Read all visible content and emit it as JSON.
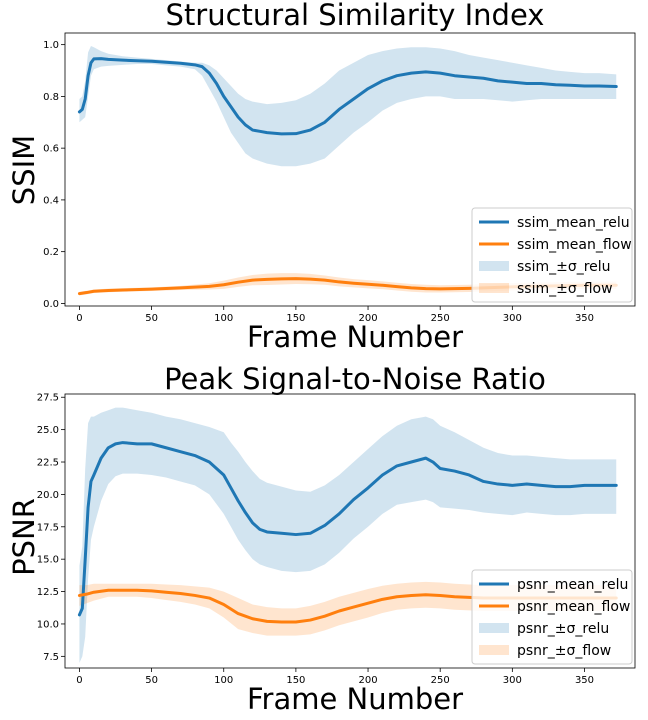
{
  "chart_data": [
    {
      "type": "line",
      "title": "Structural Similarity Index",
      "xlabel": "Frame Number",
      "ylabel": "SSIM",
      "xlim": [
        -10,
        385
      ],
      "ylim": [
        -0.01,
        1.045
      ],
      "xticks": [
        0,
        50,
        100,
        150,
        200,
        250,
        300,
        350
      ],
      "yticks": [
        0.0,
        0.2,
        0.4,
        0.6,
        0.8,
        1.0
      ],
      "ytick_labels": [
        "0.0",
        "0.2",
        "0.4",
        "0.6",
        "0.8",
        "1.0"
      ],
      "legend_position": "lower right",
      "series": [
        {
          "name": "ssim_mean_relu",
          "color": "#1f77b4",
          "x": [
            0,
            2,
            4,
            6,
            8,
            10,
            15,
            20,
            30,
            40,
            50,
            60,
            70,
            80,
            85,
            90,
            95,
            100,
            105,
            110,
            115,
            120,
            125,
            130,
            140,
            150,
            160,
            170,
            180,
            190,
            200,
            210,
            220,
            230,
            240,
            250,
            260,
            270,
            280,
            290,
            300,
            310,
            320,
            330,
            340,
            350,
            360,
            372
          ],
          "y": [
            0.74,
            0.75,
            0.79,
            0.88,
            0.93,
            0.945,
            0.946,
            0.943,
            0.94,
            0.938,
            0.936,
            0.932,
            0.928,
            0.922,
            0.915,
            0.89,
            0.85,
            0.8,
            0.76,
            0.72,
            0.69,
            0.67,
            0.665,
            0.66,
            0.655,
            0.656,
            0.67,
            0.7,
            0.75,
            0.79,
            0.83,
            0.86,
            0.88,
            0.89,
            0.895,
            0.89,
            0.88,
            0.875,
            0.87,
            0.86,
            0.855,
            0.85,
            0.85,
            0.845,
            0.843,
            0.84,
            0.84,
            0.838
          ]
        },
        {
          "name": "ssim_mean_flow",
          "color": "#ff7f0e",
          "x": [
            0,
            5,
            10,
            20,
            30,
            50,
            70,
            90,
            100,
            110,
            120,
            130,
            140,
            150,
            160,
            170,
            180,
            190,
            200,
            210,
            220,
            230,
            240,
            250,
            260,
            270,
            280,
            290,
            300,
            310,
            320,
            330,
            340,
            350,
            360,
            372
          ],
          "y": [
            0.038,
            0.042,
            0.047,
            0.05,
            0.052,
            0.055,
            0.06,
            0.066,
            0.072,
            0.082,
            0.09,
            0.093,
            0.095,
            0.096,
            0.094,
            0.09,
            0.083,
            0.078,
            0.074,
            0.07,
            0.065,
            0.06,
            0.057,
            0.056,
            0.057,
            0.058,
            0.06,
            0.062,
            0.064,
            0.066,
            0.067,
            0.068,
            0.069,
            0.07,
            0.07,
            0.07
          ]
        }
      ],
      "bands": [
        {
          "name": "ssim_±σ_relu",
          "color": "#1f77b4",
          "opacity": 0.2,
          "x": [
            0,
            2,
            4,
            6,
            8,
            10,
            15,
            20,
            30,
            40,
            50,
            60,
            70,
            80,
            85,
            90,
            95,
            100,
            105,
            110,
            115,
            120,
            125,
            130,
            140,
            150,
            160,
            170,
            180,
            190,
            200,
            210,
            220,
            230,
            240,
            250,
            260,
            270,
            280,
            290,
            300,
            310,
            320,
            330,
            340,
            350,
            360,
            372
          ],
          "upper": [
            0.79,
            0.8,
            0.86,
            0.97,
            0.995,
            0.99,
            0.975,
            0.965,
            0.955,
            0.95,
            0.945,
            0.94,
            0.935,
            0.93,
            0.93,
            0.92,
            0.9,
            0.87,
            0.84,
            0.81,
            0.79,
            0.78,
            0.775,
            0.77,
            0.775,
            0.785,
            0.81,
            0.85,
            0.9,
            0.93,
            0.96,
            0.975,
            0.985,
            0.99,
            0.99,
            0.985,
            0.975,
            0.96,
            0.95,
            0.94,
            0.93,
            0.92,
            0.91,
            0.9,
            0.895,
            0.89,
            0.89,
            0.885
          ],
          "lower": [
            0.7,
            0.71,
            0.72,
            0.8,
            0.88,
            0.905,
            0.915,
            0.918,
            0.922,
            0.925,
            0.925,
            0.92,
            0.915,
            0.905,
            0.88,
            0.83,
            0.78,
            0.72,
            0.66,
            0.62,
            0.58,
            0.56,
            0.55,
            0.54,
            0.53,
            0.53,
            0.54,
            0.56,
            0.61,
            0.66,
            0.7,
            0.745,
            0.775,
            0.79,
            0.8,
            0.8,
            0.79,
            0.79,
            0.79,
            0.785,
            0.78,
            0.785,
            0.79,
            0.79,
            0.79,
            0.79,
            0.79,
            0.79
          ]
        },
        {
          "name": "ssim_±σ_flow",
          "color": "#ff7f0e",
          "opacity": 0.2,
          "x": [
            0,
            5,
            10,
            20,
            30,
            50,
            70,
            90,
            100,
            110,
            120,
            130,
            140,
            150,
            160,
            170,
            180,
            190,
            200,
            210,
            220,
            230,
            240,
            250,
            260,
            270,
            280,
            290,
            300,
            310,
            320,
            330,
            340,
            350,
            360,
            372
          ],
          "upper": [
            0.045,
            0.049,
            0.054,
            0.057,
            0.059,
            0.062,
            0.068,
            0.078,
            0.088,
            0.1,
            0.11,
            0.115,
            0.117,
            0.117,
            0.114,
            0.108,
            0.1,
            0.094,
            0.09,
            0.085,
            0.08,
            0.075,
            0.072,
            0.07,
            0.071,
            0.072,
            0.074,
            0.076,
            0.078,
            0.08,
            0.081,
            0.082,
            0.083,
            0.084,
            0.084,
            0.084
          ],
          "lower": [
            0.031,
            0.035,
            0.04,
            0.043,
            0.045,
            0.048,
            0.052,
            0.054,
            0.056,
            0.064,
            0.07,
            0.071,
            0.073,
            0.075,
            0.074,
            0.072,
            0.066,
            0.062,
            0.058,
            0.055,
            0.05,
            0.045,
            0.042,
            0.042,
            0.043,
            0.044,
            0.046,
            0.048,
            0.05,
            0.052,
            0.053,
            0.054,
            0.055,
            0.056,
            0.056,
            0.056
          ]
        }
      ]
    },
    {
      "type": "line",
      "title": "Peak Signal-to-Noise Ratio",
      "xlabel": "Frame Number",
      "ylabel": "PSNR",
      "xlim": [
        -10,
        385
      ],
      "ylim": [
        6.6,
        27.75
      ],
      "xticks": [
        0,
        50,
        100,
        150,
        200,
        250,
        300,
        350
      ],
      "yticks": [
        7.5,
        10.0,
        12.5,
        15.0,
        17.5,
        20.0,
        22.5,
        25.0,
        27.5
      ],
      "ytick_labels": [
        "7.5",
        "10.0",
        "12.5",
        "15.0",
        "17.5",
        "20.0",
        "22.5",
        "25.0",
        "27.5"
      ],
      "legend_position": "lower right",
      "series": [
        {
          "name": "psnr_mean_relu",
          "color": "#1f77b4",
          "x": [
            0,
            2,
            4,
            6,
            8,
            10,
            15,
            20,
            25,
            30,
            40,
            50,
            60,
            70,
            80,
            90,
            100,
            105,
            110,
            115,
            120,
            125,
            130,
            140,
            150,
            160,
            170,
            180,
            190,
            200,
            210,
            220,
            230,
            240,
            245,
            250,
            260,
            270,
            280,
            290,
            300,
            310,
            320,
            330,
            340,
            350,
            360,
            372
          ],
          "y": [
            10.7,
            11.2,
            15.0,
            19.0,
            21.0,
            21.5,
            22.8,
            23.6,
            23.9,
            24.0,
            23.9,
            23.9,
            23.6,
            23.3,
            23.0,
            22.5,
            21.5,
            20.5,
            19.5,
            18.6,
            17.8,
            17.3,
            17.1,
            17.0,
            16.9,
            17.0,
            17.6,
            18.5,
            19.6,
            20.5,
            21.5,
            22.2,
            22.5,
            22.8,
            22.5,
            22.0,
            21.8,
            21.5,
            21.0,
            20.8,
            20.7,
            20.8,
            20.7,
            20.6,
            20.6,
            20.7,
            20.7,
            20.7
          ]
        },
        {
          "name": "psnr_mean_flow",
          "color": "#ff7f0e",
          "x": [
            0,
            5,
            10,
            20,
            30,
            40,
            50,
            60,
            70,
            80,
            90,
            100,
            110,
            120,
            130,
            140,
            150,
            160,
            170,
            180,
            190,
            200,
            210,
            220,
            230,
            240,
            250,
            260,
            270,
            280,
            290,
            300,
            310,
            320,
            330,
            340,
            350,
            360,
            372
          ],
          "y": [
            12.2,
            12.3,
            12.45,
            12.6,
            12.6,
            12.6,
            12.55,
            12.45,
            12.35,
            12.2,
            12.0,
            11.5,
            10.8,
            10.4,
            10.2,
            10.15,
            10.15,
            10.3,
            10.6,
            11.0,
            11.3,
            11.6,
            11.9,
            12.1,
            12.2,
            12.25,
            12.2,
            12.1,
            12.05,
            12.0,
            12.0,
            12.0,
            12.0,
            12.0,
            12.0,
            12.0,
            12.0,
            12.0,
            12.0
          ]
        }
      ],
      "bands": [
        {
          "name": "psnr_±σ_relu",
          "color": "#1f77b4",
          "opacity": 0.2,
          "x": [
            0,
            2,
            4,
            6,
            8,
            10,
            15,
            20,
            25,
            30,
            40,
            50,
            60,
            70,
            80,
            90,
            100,
            105,
            110,
            115,
            120,
            125,
            130,
            140,
            150,
            160,
            170,
            180,
            190,
            200,
            210,
            220,
            230,
            240,
            245,
            250,
            260,
            270,
            280,
            290,
            300,
            310,
            320,
            330,
            340,
            350,
            360,
            372
          ],
          "upper": [
            14.5,
            16.0,
            22.0,
            25.5,
            26.0,
            26.0,
            26.3,
            26.5,
            26.7,
            26.7,
            26.5,
            26.3,
            26.0,
            25.8,
            25.5,
            25.2,
            24.8,
            24.0,
            23.3,
            22.5,
            21.8,
            21.2,
            20.9,
            20.6,
            20.3,
            20.2,
            20.7,
            21.5,
            22.5,
            23.5,
            24.5,
            25.3,
            25.8,
            26.0,
            25.8,
            25.3,
            24.8,
            24.2,
            23.6,
            23.2,
            23.0,
            23.0,
            22.9,
            22.8,
            22.7,
            22.7,
            22.7,
            22.7
          ],
          "lower": [
            7.0,
            7.5,
            9.0,
            13.5,
            16.5,
            17.5,
            19.5,
            20.8,
            21.4,
            21.6,
            21.6,
            21.5,
            21.3,
            21.0,
            20.7,
            20.0,
            18.5,
            17.5,
            16.5,
            15.7,
            15.0,
            14.6,
            14.4,
            14.1,
            14.0,
            14.1,
            14.6,
            15.5,
            16.6,
            17.5,
            18.5,
            19.2,
            19.4,
            19.6,
            19.4,
            19.0,
            18.9,
            18.8,
            18.6,
            18.5,
            18.4,
            18.6,
            18.5,
            18.4,
            18.4,
            18.5,
            18.5,
            18.5
          ]
        },
        {
          "name": "psnr_±σ_flow",
          "color": "#ff7f0e",
          "opacity": 0.2,
          "x": [
            0,
            5,
            10,
            20,
            30,
            40,
            50,
            60,
            70,
            80,
            90,
            100,
            110,
            120,
            130,
            140,
            150,
            160,
            170,
            180,
            190,
            200,
            210,
            220,
            230,
            240,
            250,
            260,
            270,
            280,
            290,
            300,
            310,
            320,
            330,
            340,
            350,
            360,
            372
          ],
          "upper": [
            13.0,
            13.0,
            13.1,
            13.1,
            13.1,
            13.1,
            13.1,
            13.05,
            13.0,
            12.9,
            12.8,
            12.5,
            12.0,
            11.5,
            11.3,
            11.2,
            11.2,
            11.4,
            11.7,
            12.1,
            12.4,
            12.7,
            12.95,
            13.1,
            13.2,
            13.25,
            13.2,
            13.1,
            13.05,
            13.0,
            13.0,
            13.0,
            13.0,
            13.0,
            13.0,
            13.0,
            13.0,
            13.0,
            13.0
          ],
          "lower": [
            11.4,
            11.6,
            11.8,
            12.1,
            12.1,
            12.1,
            12.0,
            11.85,
            11.7,
            11.5,
            11.2,
            10.5,
            9.6,
            9.3,
            9.1,
            9.1,
            9.1,
            9.2,
            9.5,
            9.9,
            10.2,
            10.5,
            10.85,
            11.1,
            11.2,
            11.25,
            11.2,
            11.1,
            11.05,
            11.0,
            11.0,
            11.0,
            11.0,
            11.0,
            11.0,
            11.0,
            11.0,
            11.0,
            11.0
          ]
        }
      ]
    }
  ]
}
